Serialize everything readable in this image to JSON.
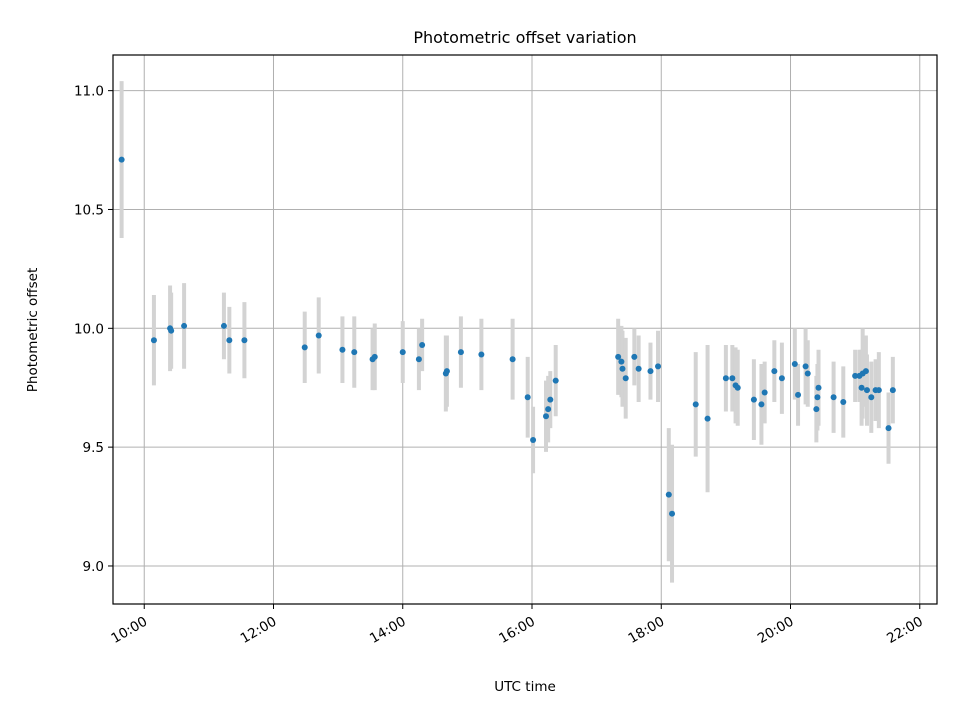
{
  "chart_data": {
    "type": "scatter",
    "title": "Photometric offset variation",
    "xlabel": "UTC time",
    "ylabel": "Photometric offset",
    "xlim": [
      "09:31",
      "22:16"
    ],
    "ylim": [
      8.84,
      11.15
    ],
    "xticks": [
      "10:00",
      "12:00",
      "14:00",
      "16:00",
      "18:00",
      "20:00",
      "22:00"
    ],
    "yticks": [
      "9.0",
      "9.5",
      "10.0",
      "10.5",
      "11.0"
    ],
    "grid": true,
    "colors": {
      "point": "#1f77b4",
      "errorbar": "#d3d3d3",
      "grid": "#b0b0b0"
    },
    "series": [
      {
        "x": [
          "09:39",
          "10:09",
          "10:24",
          "10:25",
          "10:37",
          "11:14",
          "11:19",
          "11:33",
          "12:29",
          "12:42",
          "13:04",
          "13:15",
          "13:32",
          "13:34",
          "14:00",
          "14:15",
          "14:18",
          "14:40",
          "14:41",
          "14:54",
          "15:13",
          "15:42",
          "15:56",
          "16:01",
          "16:13",
          "16:15",
          "16:17",
          "16:22",
          "17:20",
          "17:23",
          "17:24",
          "17:27",
          "17:35",
          "17:39",
          "17:50",
          "17:57",
          "18:07",
          "18:10",
          "18:32",
          "18:43",
          "19:00",
          "19:06",
          "19:09",
          "19:11",
          "19:26",
          "19:33",
          "19:36",
          "19:45",
          "19:52",
          "20:04",
          "20:07",
          "20:14",
          "20:16",
          "20:24",
          "20:25",
          "20:26",
          "20:40",
          "20:49",
          "21:00",
          "21:04",
          "21:06",
          "21:07",
          "21:10",
          "21:11",
          "21:15",
          "21:19",
          "21:22",
          "21:31",
          "21:35"
        ],
        "y": [
          10.71,
          9.95,
          10.0,
          9.99,
          10.01,
          10.01,
          9.95,
          9.95,
          9.92,
          9.97,
          9.91,
          9.9,
          9.87,
          9.88,
          9.9,
          9.87,
          9.93,
          9.81,
          9.82,
          9.9,
          9.89,
          9.87,
          9.71,
          9.53,
          9.63,
          9.66,
          9.7,
          9.78,
          9.88,
          9.86,
          9.83,
          9.79,
          9.88,
          9.83,
          9.82,
          9.84,
          9.3,
          9.22,
          9.68,
          9.62,
          9.79,
          9.79,
          9.76,
          9.75,
          9.7,
          9.68,
          9.73,
          9.82,
          9.79,
          9.85,
          9.72,
          9.84,
          9.81,
          9.66,
          9.71,
          9.75,
          9.71,
          9.69,
          9.8,
          9.8,
          9.75,
          9.81,
          9.82,
          9.74,
          9.71,
          9.74,
          9.74,
          9.58,
          9.74
        ],
        "yerr": [
          0.33,
          0.19,
          0.18,
          0.16,
          0.18,
          0.14,
          0.14,
          0.16,
          0.15,
          0.16,
          0.14,
          0.15,
          0.13,
          0.14,
          0.13,
          0.13,
          0.11,
          0.16,
          0.15,
          0.15,
          0.15,
          0.17,
          0.17,
          0.14,
          0.15,
          0.14,
          0.12,
          0.15,
          0.16,
          0.15,
          0.16,
          0.17,
          0.12,
          0.14,
          0.12,
          0.15,
          0.28,
          0.29,
          0.22,
          0.31,
          0.14,
          0.14,
          0.16,
          0.16,
          0.17,
          0.17,
          0.13,
          0.13,
          0.15,
          0.15,
          0.13,
          0.16,
          0.14,
          0.14,
          0.14,
          0.16,
          0.15,
          0.15,
          0.11,
          0.11,
          0.16,
          0.19,
          0.15,
          0.15,
          0.15,
          0.13,
          0.16,
          0.15,
          0.14
        ]
      }
    ]
  }
}
